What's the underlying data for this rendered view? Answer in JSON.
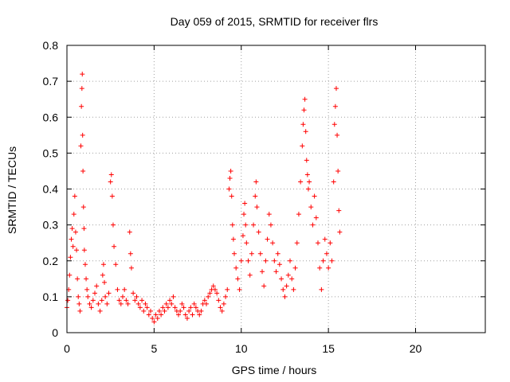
{
  "chart_data": {
    "type": "scatter",
    "title": "Day 059 of 2015, SRMTID for receiver flrs",
    "xlabel": "GPS time / hours",
    "ylabel": "SRMTID / TECUs",
    "xlim": [
      0,
      24
    ],
    "ylim": [
      0,
      0.8
    ],
    "xticks": [
      0,
      5,
      10,
      15,
      20
    ],
    "xtick_labels": [
      "0",
      "5",
      "10",
      "15",
      "20"
    ],
    "yticks": [
      0,
      0.1,
      0.2,
      0.3,
      0.4,
      0.5,
      0.6,
      0.7,
      0.8
    ],
    "ytick_labels": [
      "0",
      "0.1",
      "0.2",
      "0.3",
      "0.4",
      "0.5",
      "0.6",
      "0.7",
      "0.8"
    ],
    "grid": true,
    "marker": "+",
    "color": "#ff0000",
    "series": [
      {
        "name": "SRMTID",
        "points": [
          [
            0.0,
            0.07
          ],
          [
            0.05,
            0.09
          ],
          [
            0.1,
            0.12
          ],
          [
            0.15,
            0.16
          ],
          [
            0.2,
            0.21
          ],
          [
            0.25,
            0.26
          ],
          [
            0.3,
            0.29
          ],
          [
            0.35,
            0.24
          ],
          [
            0.4,
            0.33
          ],
          [
            0.45,
            0.38
          ],
          [
            0.5,
            0.28
          ],
          [
            0.55,
            0.23
          ],
          [
            0.6,
            0.15
          ],
          [
            0.65,
            0.1
          ],
          [
            0.7,
            0.08
          ],
          [
            0.75,
            0.06
          ],
          [
            0.8,
            0.52
          ],
          [
            0.83,
            0.63
          ],
          [
            0.86,
            0.68
          ],
          [
            0.88,
            0.72
          ],
          [
            0.9,
            0.55
          ],
          [
            0.92,
            0.45
          ],
          [
            0.95,
            0.35
          ],
          [
            0.98,
            0.29
          ],
          [
            1.0,
            0.23
          ],
          [
            1.05,
            0.19
          ],
          [
            1.1,
            0.15
          ],
          [
            1.15,
            0.12
          ],
          [
            1.2,
            0.1
          ],
          [
            1.3,
            0.08
          ],
          [
            1.4,
            0.07
          ],
          [
            1.5,
            0.09
          ],
          [
            1.6,
            0.11
          ],
          [
            1.7,
            0.13
          ],
          [
            1.8,
            0.08
          ],
          [
            1.9,
            0.06
          ],
          [
            2.0,
            0.09
          ],
          [
            2.05,
            0.16
          ],
          [
            2.1,
            0.19
          ],
          [
            2.15,
            0.14
          ],
          [
            2.2,
            0.1
          ],
          [
            2.3,
            0.08
          ],
          [
            2.4,
            0.11
          ],
          [
            2.5,
            0.42
          ],
          [
            2.55,
            0.44
          ],
          [
            2.6,
            0.38
          ],
          [
            2.65,
            0.3
          ],
          [
            2.7,
            0.24
          ],
          [
            2.8,
            0.19
          ],
          [
            2.9,
            0.12
          ],
          [
            3.0,
            0.09
          ],
          [
            3.1,
            0.08
          ],
          [
            3.2,
            0.1
          ],
          [
            3.3,
            0.12
          ],
          [
            3.4,
            0.09
          ],
          [
            3.5,
            0.08
          ],
          [
            3.6,
            0.28
          ],
          [
            3.65,
            0.22
          ],
          [
            3.7,
            0.18
          ],
          [
            3.8,
            0.11
          ],
          [
            3.9,
            0.09
          ],
          [
            4.0,
            0.1
          ],
          [
            4.1,
            0.08
          ],
          [
            4.2,
            0.07
          ],
          [
            4.3,
            0.09
          ],
          [
            4.4,
            0.06
          ],
          [
            4.5,
            0.08
          ],
          [
            4.6,
            0.07
          ],
          [
            4.7,
            0.05
          ],
          [
            4.8,
            0.06
          ],
          [
            4.9,
            0.04
          ],
          [
            5.0,
            0.03
          ],
          [
            5.1,
            0.05
          ],
          [
            5.2,
            0.04
          ],
          [
            5.3,
            0.06
          ],
          [
            5.4,
            0.05
          ],
          [
            5.5,
            0.07
          ],
          [
            5.6,
            0.06
          ],
          [
            5.7,
            0.08
          ],
          [
            5.8,
            0.07
          ],
          [
            5.9,
            0.09
          ],
          [
            6.0,
            0.08
          ],
          [
            6.1,
            0.1
          ],
          [
            6.2,
            0.07
          ],
          [
            6.3,
            0.06
          ],
          [
            6.4,
            0.05
          ],
          [
            6.5,
            0.06
          ],
          [
            6.6,
            0.08
          ],
          [
            6.7,
            0.07
          ],
          [
            6.8,
            0.05
          ],
          [
            6.9,
            0.04
          ],
          [
            7.0,
            0.06
          ],
          [
            7.1,
            0.07
          ],
          [
            7.2,
            0.05
          ],
          [
            7.3,
            0.08
          ],
          [
            7.4,
            0.07
          ],
          [
            7.5,
            0.06
          ],
          [
            7.6,
            0.05
          ],
          [
            7.7,
            0.06
          ],
          [
            7.8,
            0.08
          ],
          [
            7.9,
            0.09
          ],
          [
            8.0,
            0.08
          ],
          [
            8.1,
            0.1
          ],
          [
            8.2,
            0.11
          ],
          [
            8.3,
            0.12
          ],
          [
            8.4,
            0.13
          ],
          [
            8.5,
            0.12
          ],
          [
            8.6,
            0.11
          ],
          [
            8.7,
            0.09
          ],
          [
            8.8,
            0.07
          ],
          [
            8.9,
            0.06
          ],
          [
            9.0,
            0.08
          ],
          [
            9.1,
            0.1
          ],
          [
            9.2,
            0.12
          ],
          [
            9.3,
            0.4
          ],
          [
            9.35,
            0.43
          ],
          [
            9.4,
            0.45
          ],
          [
            9.45,
            0.38
          ],
          [
            9.5,
            0.3
          ],
          [
            9.55,
            0.26
          ],
          [
            9.6,
            0.22
          ],
          [
            9.7,
            0.18
          ],
          [
            9.8,
            0.15
          ],
          [
            9.9,
            0.12
          ],
          [
            10.0,
            0.2
          ],
          [
            10.1,
            0.27
          ],
          [
            10.15,
            0.33
          ],
          [
            10.2,
            0.36
          ],
          [
            10.25,
            0.3
          ],
          [
            10.3,
            0.25
          ],
          [
            10.4,
            0.2
          ],
          [
            10.5,
            0.16
          ],
          [
            10.6,
            0.22
          ],
          [
            10.7,
            0.3
          ],
          [
            10.8,
            0.38
          ],
          [
            10.85,
            0.42
          ],
          [
            10.9,
            0.35
          ],
          [
            11.0,
            0.28
          ],
          [
            11.1,
            0.22
          ],
          [
            11.2,
            0.17
          ],
          [
            11.3,
            0.13
          ],
          [
            11.4,
            0.2
          ],
          [
            11.5,
            0.26
          ],
          [
            11.6,
            0.33
          ],
          [
            11.7,
            0.3
          ],
          [
            11.8,
            0.25
          ],
          [
            11.9,
            0.2
          ],
          [
            12.0,
            0.17
          ],
          [
            12.1,
            0.22
          ],
          [
            12.2,
            0.19
          ],
          [
            12.3,
            0.15
          ],
          [
            12.4,
            0.12
          ],
          [
            12.5,
            0.1
          ],
          [
            12.6,
            0.13
          ],
          [
            12.7,
            0.16
          ],
          [
            12.8,
            0.2
          ],
          [
            12.9,
            0.15
          ],
          [
            13.0,
            0.12
          ],
          [
            13.1,
            0.18
          ],
          [
            13.2,
            0.25
          ],
          [
            13.3,
            0.33
          ],
          [
            13.4,
            0.42
          ],
          [
            13.5,
            0.52
          ],
          [
            13.55,
            0.58
          ],
          [
            13.6,
            0.62
          ],
          [
            13.65,
            0.65
          ],
          [
            13.7,
            0.56
          ],
          [
            13.75,
            0.48
          ],
          [
            13.8,
            0.44
          ],
          [
            13.85,
            0.4
          ],
          [
            13.9,
            0.42
          ],
          [
            14.0,
            0.35
          ],
          [
            14.1,
            0.3
          ],
          [
            14.2,
            0.38
          ],
          [
            14.3,
            0.32
          ],
          [
            14.4,
            0.25
          ],
          [
            14.5,
            0.18
          ],
          [
            14.6,
            0.12
          ],
          [
            14.7,
            0.2
          ],
          [
            14.8,
            0.26
          ],
          [
            14.9,
            0.22
          ],
          [
            15.0,
            0.18
          ],
          [
            15.1,
            0.25
          ],
          [
            15.2,
            0.2
          ],
          [
            15.3,
            0.42
          ],
          [
            15.35,
            0.58
          ],
          [
            15.4,
            0.63
          ],
          [
            15.45,
            0.68
          ],
          [
            15.5,
            0.55
          ],
          [
            15.55,
            0.45
          ],
          [
            15.6,
            0.34
          ],
          [
            15.65,
            0.28
          ]
        ]
      }
    ]
  }
}
